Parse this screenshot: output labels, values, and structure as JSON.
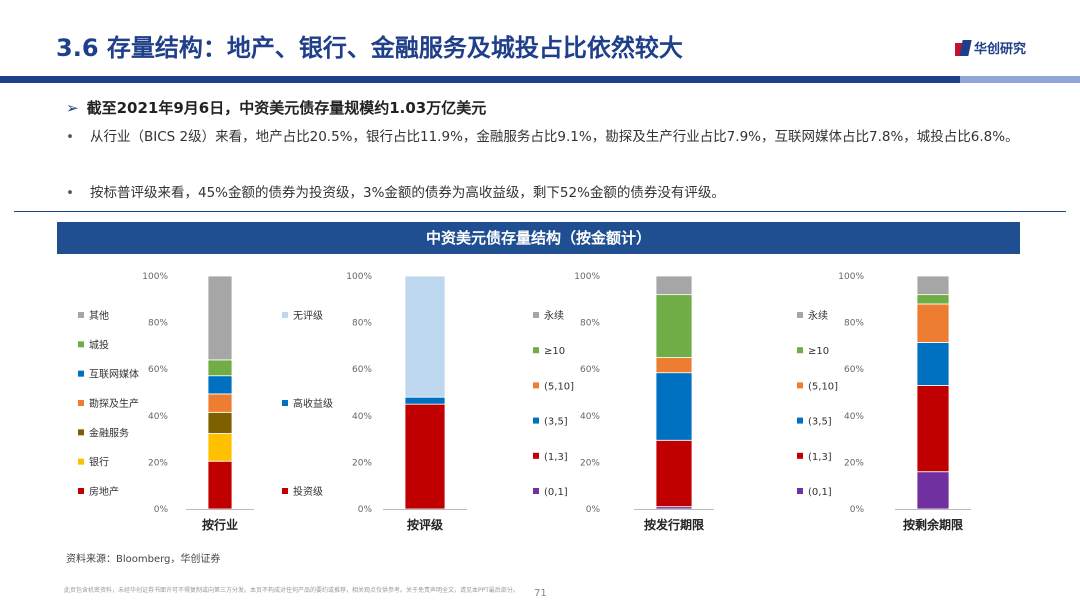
{
  "header": {
    "title": "3.6 存量结构：地产、银行、金融服务及城投占比依然较大",
    "logo_text": "华创研究"
  },
  "bullets": {
    "main_arrow": "➢",
    "main": "截至2021年9月6日，中资美元债存量规模约1.03万亿美元",
    "sub_dot": "•",
    "sub1": "从行业（BICS 2级）来看，地产占比20.5%，银行占比11.9%，金融服务占比9.1%，勘探及生产行业占比7.9%，互联网媒体占比7.8%，城投占比6.8%。",
    "sub2": "按标普评级来看，45%金额的债券为投资级，3%金额的债券为高收益级，剩下52%金额的债券没有评级。"
  },
  "chart_title": "中资美元债存量结构（按金额计）",
  "colors": {
    "brand": "#1F3F8A",
    "banner": "#1F4E91",
    "red": "#C00000",
    "yellow": "#FFC000",
    "olive": "#7F6000",
    "orange": "#ED7D31",
    "blue": "#0070C0",
    "green": "#70AD47",
    "gray": "#A6A6A6",
    "lightblue": "#BDD7EE",
    "purple": "#7030A0"
  },
  "chart_data": [
    {
      "type": "bar",
      "stacked": true,
      "percent": true,
      "xlabel": "按行业",
      "yticks": [
        "0%",
        "20%",
        "40%",
        "60%",
        "80%",
        "100%"
      ],
      "ylim": [
        0,
        100
      ],
      "legend_position": "left",
      "series": [
        {
          "name": "房地产",
          "value": 20.5,
          "color": "#C00000"
        },
        {
          "name": "银行",
          "value": 11.9,
          "color": "#FFC000"
        },
        {
          "name": "金融服务",
          "value": 9.1,
          "color": "#7F6000"
        },
        {
          "name": "勘探及生产",
          "value": 7.9,
          "color": "#ED7D31"
        },
        {
          "name": "互联网媒体",
          "value": 7.8,
          "color": "#0070C0"
        },
        {
          "name": "城投",
          "value": 6.8,
          "color": "#70AD47"
        },
        {
          "name": "其他",
          "value": 36.0,
          "color": "#A6A6A6"
        }
      ]
    },
    {
      "type": "bar",
      "stacked": true,
      "percent": true,
      "xlabel": "按评级",
      "yticks": [
        "0%",
        "20%",
        "40%",
        "60%",
        "80%",
        "100%"
      ],
      "ylim": [
        0,
        100
      ],
      "legend_position": "left",
      "series": [
        {
          "name": "投资级",
          "value": 45,
          "color": "#C00000"
        },
        {
          "name": "高收益级",
          "value": 3,
          "color": "#0070C0"
        },
        {
          "name": "无评级",
          "value": 52,
          "color": "#BDD7EE"
        }
      ]
    },
    {
      "type": "bar",
      "stacked": true,
      "percent": true,
      "xlabel": "按发行期限",
      "yticks": [
        "0%",
        "20%",
        "40%",
        "60%",
        "80%",
        "100%"
      ],
      "ylim": [
        0,
        100
      ],
      "legend_position": "left",
      "series": [
        {
          "name": "(0,1]",
          "value": 1,
          "color": "#7030A0"
        },
        {
          "name": "(1,3]",
          "value": 28.5,
          "color": "#C00000"
        },
        {
          "name": "(3,5]",
          "value": 29,
          "color": "#0070C0"
        },
        {
          "name": "(5,10]",
          "value": 6.5,
          "color": "#ED7D31"
        },
        {
          "name": "≥10",
          "value": 27,
          "color": "#70AD47"
        },
        {
          "name": "永续",
          "value": 8,
          "color": "#A6A6A6"
        }
      ]
    },
    {
      "type": "bar",
      "stacked": true,
      "percent": true,
      "xlabel": "按剩余期限",
      "yticks": [
        "0%",
        "20%",
        "40%",
        "60%",
        "80%",
        "100%"
      ],
      "ylim": [
        0,
        100
      ],
      "legend_position": "left",
      "series": [
        {
          "name": "(0,1]",
          "value": 16,
          "color": "#7030A0"
        },
        {
          "name": "(1,3]",
          "value": 37,
          "color": "#C00000"
        },
        {
          "name": "(3,5]",
          "value": 18.5,
          "color": "#0070C0"
        },
        {
          "name": "(5,10]",
          "value": 16.5,
          "color": "#ED7D31"
        },
        {
          "name": "≥10",
          "value": 4,
          "color": "#70AD47"
        },
        {
          "name": "永续",
          "value": 8,
          "color": "#A6A6A6"
        }
      ]
    }
  ],
  "footer": {
    "source": "资料来源：Bloomberg，华创证券",
    "disclaimer": "此页包含机密资料，未经华创证券书面许可不得复制或向第三方分发。本页不构成对任何产品的要约或推荐，相关观点仅供参考。关于免责声明全文，请见本PPT最后部分。",
    "page": "71"
  }
}
